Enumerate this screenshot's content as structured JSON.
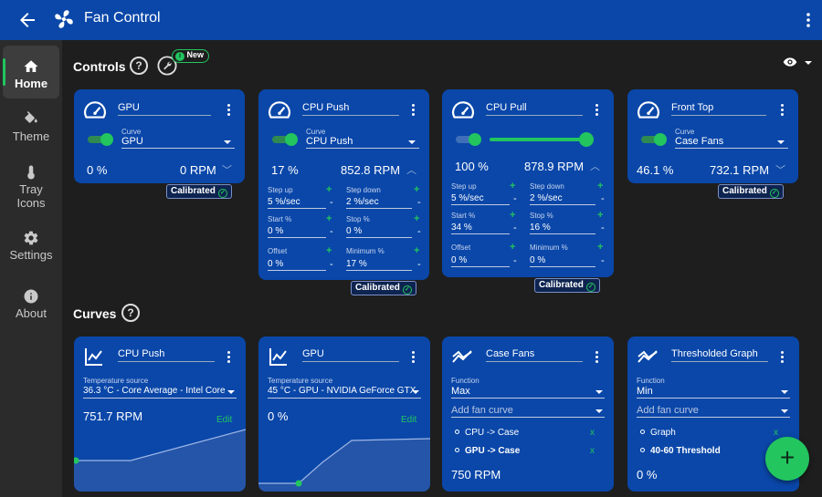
{
  "app": {
    "title": "Fan Control"
  },
  "sidebar": {
    "items": [
      {
        "label": "Home",
        "icon": "home-icon",
        "active": true
      },
      {
        "label": "Theme",
        "icon": "paint-bucket-icon"
      },
      {
        "label": "Tray Icons",
        "icon": "thermometer-icon"
      },
      {
        "label": "Settings",
        "icon": "gear-icon"
      },
      {
        "label": "About",
        "icon": "info-icon"
      }
    ]
  },
  "controls_section": {
    "title": "Controls",
    "help": "?",
    "new_badge": "New"
  },
  "controls": [
    {
      "name": "GPU",
      "curve_label": "Curve",
      "curve": "GPU",
      "percent": "0 %",
      "rpm": "0 RPM",
      "calibrated": "Calibrated"
    },
    {
      "name": "CPU Push",
      "curve_label": "Curve",
      "curve": "CPU Push",
      "percent": "17 %",
      "rpm": "852.8 RPM",
      "calibrated": "Calibrated",
      "step_up_label": "Step up",
      "step_up": "5 %/sec",
      "step_down_label": "Step down",
      "step_down": "2 %/sec",
      "start_label": "Start %",
      "start": "0 %",
      "stop_label": "Stop %",
      "stop": "0 %",
      "offset_label": "Offset",
      "offset": "0 %",
      "minimum_label": "Minimum %",
      "minimum": "17 %"
    },
    {
      "name": "CPU Pull",
      "percent": "100 %",
      "rpm": "878.9 RPM",
      "calibrated": "Calibrated",
      "manual_level_percent": 100,
      "step_up_label": "Step up",
      "step_up": "5 %/sec",
      "step_down_label": "Step down",
      "step_down": "2 %/sec",
      "start_label": "Start %",
      "start": "34 %",
      "stop_label": "Stop %",
      "stop": "16 %",
      "offset_label": "Offset",
      "offset": "0 %",
      "minimum_label": "Minimum %",
      "minimum": "0 %"
    },
    {
      "name": "Front Top",
      "curve_label": "Curve",
      "curve": "Case Fans",
      "percent": "46.1 %",
      "rpm": "732.1 RPM",
      "calibrated": "Calibrated"
    }
  ],
  "curves_section": {
    "title": "Curves",
    "help": "?"
  },
  "curves": [
    {
      "name": "CPU Push",
      "source_label": "Temperature source",
      "source": "36.3 °C - Core Average - Intel Core",
      "value": "751.7 RPM",
      "edit": "Edit"
    },
    {
      "name": "GPU",
      "source_label": "Temperature source",
      "source": "45 °C - GPU - NVIDIA GeForce GTX",
      "value": "0 %",
      "edit": "Edit"
    },
    {
      "name": "Case Fans",
      "function_label": "Function",
      "function": "Max",
      "add_placeholder": "Add fan curve",
      "items": [
        {
          "label": "CPU -> Case",
          "remove": "x"
        },
        {
          "label": "GPU -> Case",
          "remove": "x"
        }
      ],
      "value": "750 RPM"
    },
    {
      "name": "Thresholded Graph",
      "function_label": "Function",
      "function": "Min",
      "add_placeholder": "Add fan curve",
      "items": [
        {
          "label": "Graph",
          "remove": "x"
        },
        {
          "label": "40-60 Threshold",
          "remove": "x"
        }
      ],
      "value": "0 %"
    }
  ],
  "fab": {
    "label": "+"
  },
  "colors": {
    "titlebar": "#0a47a9",
    "card": "#0a47a9",
    "accent": "#22c55e",
    "background": "#1e1e1e"
  }
}
